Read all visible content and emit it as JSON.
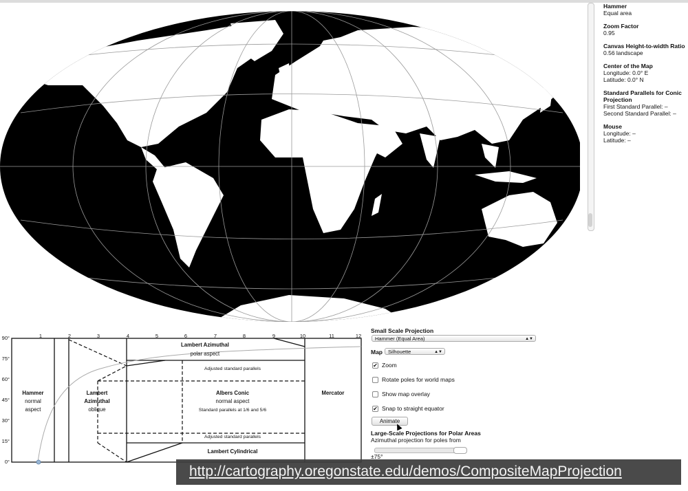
{
  "info": {
    "projection_name": "Hammer",
    "projection_type": "Equal area",
    "zoom_head": "Zoom Factor",
    "zoom_value": "0.95",
    "ratio_head": "Canvas Height-to-width Ratio",
    "ratio_value": "0.56 landscape",
    "center_head": "Center of the Map",
    "center_lon": "Longitude: 0.0° E",
    "center_lat": "Latitude: 0.0° N",
    "parallels_head": "Standard Parallels for Conic Projection",
    "parallel_first": "First Standard Parallel: –",
    "parallel_second": "Second Standard Parallel: –",
    "mouse_head": "Mouse",
    "mouse_lon": "Longitude: –",
    "mouse_lat": "Latitude: –"
  },
  "diagram": {
    "col_labels": [
      "1",
      "2",
      "3",
      "4",
      "5",
      "6",
      "7",
      "8",
      "9",
      "10",
      "11",
      "12"
    ],
    "row_labels": [
      "90°",
      "75°",
      "60°",
      "45°",
      "30°",
      "15°",
      "0°"
    ],
    "regions": {
      "hammer_title": "Hammer",
      "hammer_l1": "normal",
      "hammer_l2": "aspect",
      "lambert_az_title1": "Lambert",
      "lambert_az_title2": "Azimuthal",
      "lambert_az_l1": "oblique",
      "lambert_polar_title": "Lambert Azimuthal",
      "lambert_polar_l1": "polar aspect",
      "adjusted_top": "Adjusted standard parallels",
      "albers_title": "Albers Conic",
      "albers_l1": "normal aspect",
      "albers_l2": "Standard parallels at 1/6 and 5/6",
      "adjusted_bottom": "Adjusted standard parallels",
      "lambert_cyl_title": "Lambert Cylindrical",
      "mercator_title": "Mercator"
    }
  },
  "controls": {
    "small_scale_head": "Small Scale Projection",
    "small_scale_value": "Hammer (Equal Area)",
    "map_label": "Map",
    "map_value": "Silhouette",
    "zoom_label": "Zoom",
    "zoom_checked": "✔",
    "rotate_label": "Rotate poles for world maps",
    "overlay_label": "Show map overlay",
    "snap_label": "Snap to straight equator",
    "snap_checked": "✔",
    "animate_label": "Animate",
    "large_scale_head": "Large-Scale Projections for Polar Areas",
    "large_scale_sub": "Azimuthal projection for poles from",
    "slider_value": "±75°"
  },
  "url": "http://cartography.oregonstate.edu/demos/CompositeMapProjection"
}
